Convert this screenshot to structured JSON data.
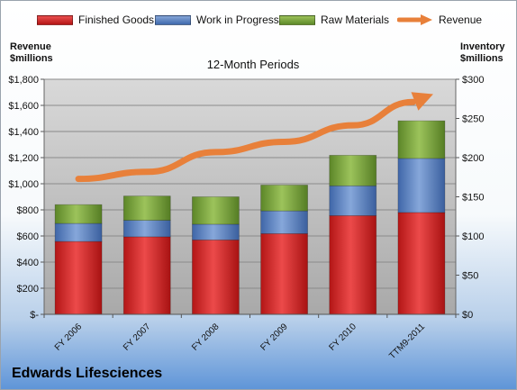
{
  "legend": {
    "finished_goods": "Finished Goods",
    "wip": "Work in Progress",
    "raw": "Raw Materials",
    "revenue": "Revenue"
  },
  "axes": {
    "left_title_line1": "Revenue",
    "left_title_line2": "$millions",
    "right_title_line1": "Inventory",
    "right_title_line2": "$millions"
  },
  "company": "Edwards Lifesciences",
  "colors": {
    "finished_goods": "#d92b2b",
    "wip": "#5d84c2",
    "raw": "#77a13b",
    "revenue": "#e8803a",
    "plot_bg": "#b9b9b9"
  },
  "chart_data": {
    "type": "bar",
    "subtitle": "12-Month Periods",
    "categories": [
      "FY 2006",
      "FY 2007",
      "FY 2008",
      "FY 2009",
      "FY 2010",
      "TTM9-2011"
    ],
    "left_axis": {
      "ylim": [
        0,
        1800
      ],
      "ticks": [
        0,
        200,
        400,
        600,
        800,
        1000,
        1200,
        1400,
        1600,
        1800
      ],
      "tick_labels": [
        "$-",
        "$200",
        "$400",
        "$600",
        "$800",
        "$1,000",
        "$1,200",
        "$1,400",
        "$1,600",
        "$1,800"
      ]
    },
    "right_axis": {
      "ylim": [
        0,
        300
      ],
      "ticks": [
        0,
        50,
        100,
        150,
        200,
        250,
        300
      ],
      "tick_labels": [
        "$0",
        "$50",
        "$100",
        "$150",
        "$200",
        "$250",
        "$300"
      ]
    },
    "stacked_series": [
      {
        "name": "Finished Goods",
        "axis": "right",
        "values": [
          93,
          99,
          95,
          103,
          126,
          130
        ]
      },
      {
        "name": "Work in Progress",
        "axis": "right",
        "values": [
          23,
          21,
          20,
          29,
          38,
          69
        ]
      },
      {
        "name": "Raw Materials",
        "axis": "right",
        "values": [
          24,
          31,
          35,
          33,
          39,
          48
        ]
      }
    ],
    "line_series": {
      "name": "Revenue",
      "axis": "left",
      "values": [
        1037,
        1091,
        1242,
        1321,
        1447,
        1651
      ]
    },
    "grid": true
  }
}
